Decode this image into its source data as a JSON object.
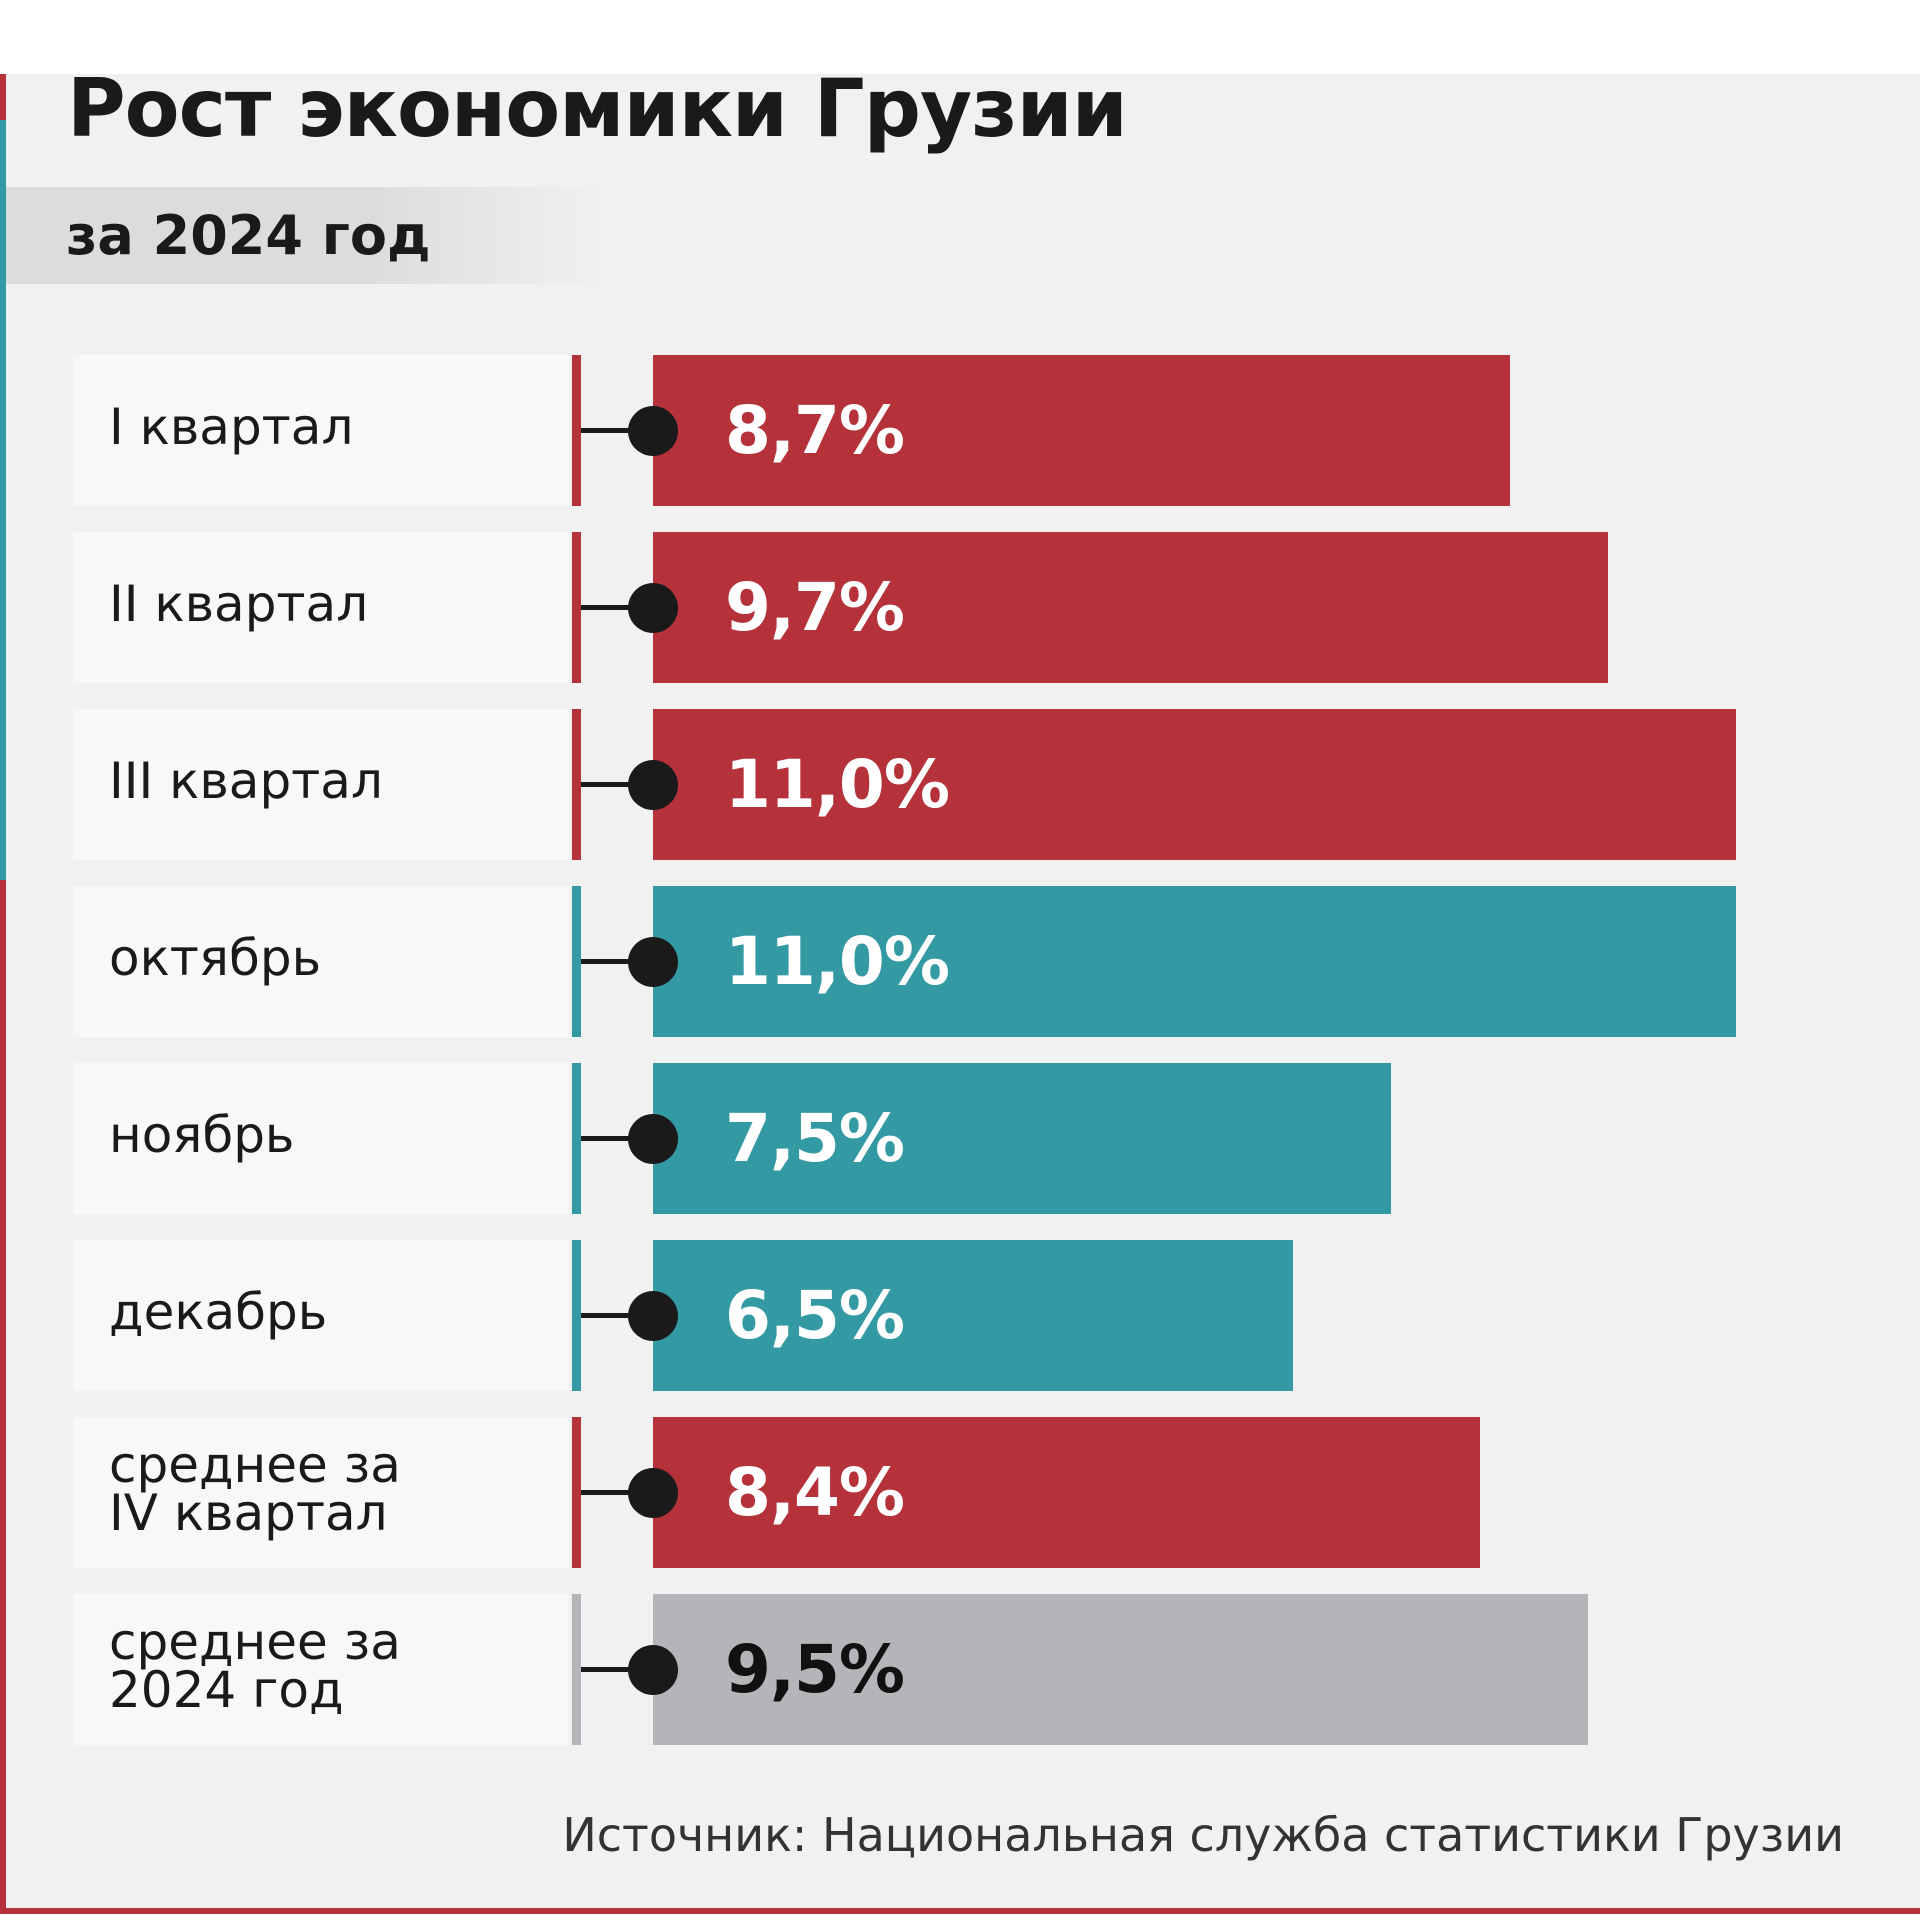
{
  "chart_data": {
    "type": "bar",
    "orientation": "horizontal",
    "title": "Рост экономики Грузии",
    "subtitle": "за 2024 год",
    "categories": [
      "I квартал",
      "II квартал",
      "III квартал",
      "октябрь",
      "ноябрь",
      "декабрь",
      "среднее за\nIV квартал",
      "среднее за\n2024 год"
    ],
    "values": [
      8.7,
      9.7,
      11.0,
      11.0,
      7.5,
      6.5,
      8.4,
      9.5
    ],
    "value_labels": [
      "8,7%",
      "9,7%",
      "11,0%",
      "11,0%",
      "7,5%",
      "6,5%",
      "8,4%",
      "9,5%"
    ],
    "colors": [
      "#b5323a",
      "#b5323a",
      "#b5323a",
      "#3399a3",
      "#3399a3",
      "#3399a3",
      "#b5323a",
      "#b4b5b8"
    ],
    "label_colors": [
      "#ffffff",
      "#ffffff",
      "#ffffff",
      "#ffffff",
      "#ffffff",
      "#ffffff",
      "#ffffff",
      "#111111"
    ],
    "source": "Источник: Национальная служба статистики Грузии"
  }
}
